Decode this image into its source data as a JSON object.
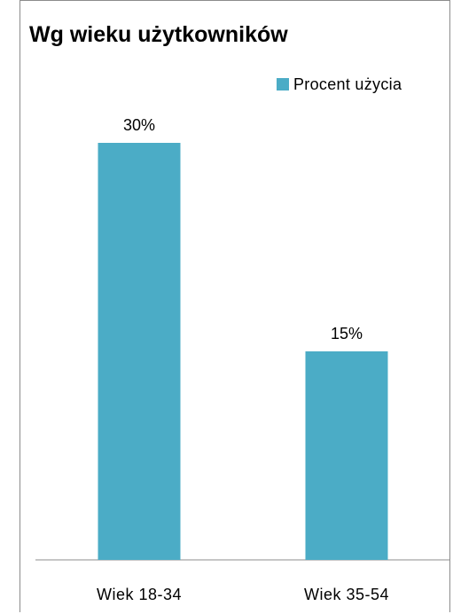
{
  "chart_data": {
    "type": "bar",
    "title": "Wg wieku użytkowników",
    "categories": [
      "Wiek 18-34",
      "Wiek 35-54"
    ],
    "series": [
      {
        "name": "Procent użycia",
        "values": [
          30,
          15
        ],
        "value_labels": [
          "30%",
          "15%"
        ],
        "color": "#4bacc6"
      }
    ],
    "ylim": [
      0,
      30
    ],
    "grid": false,
    "legend": "top-right",
    "xlabel": "",
    "ylabel": ""
  }
}
